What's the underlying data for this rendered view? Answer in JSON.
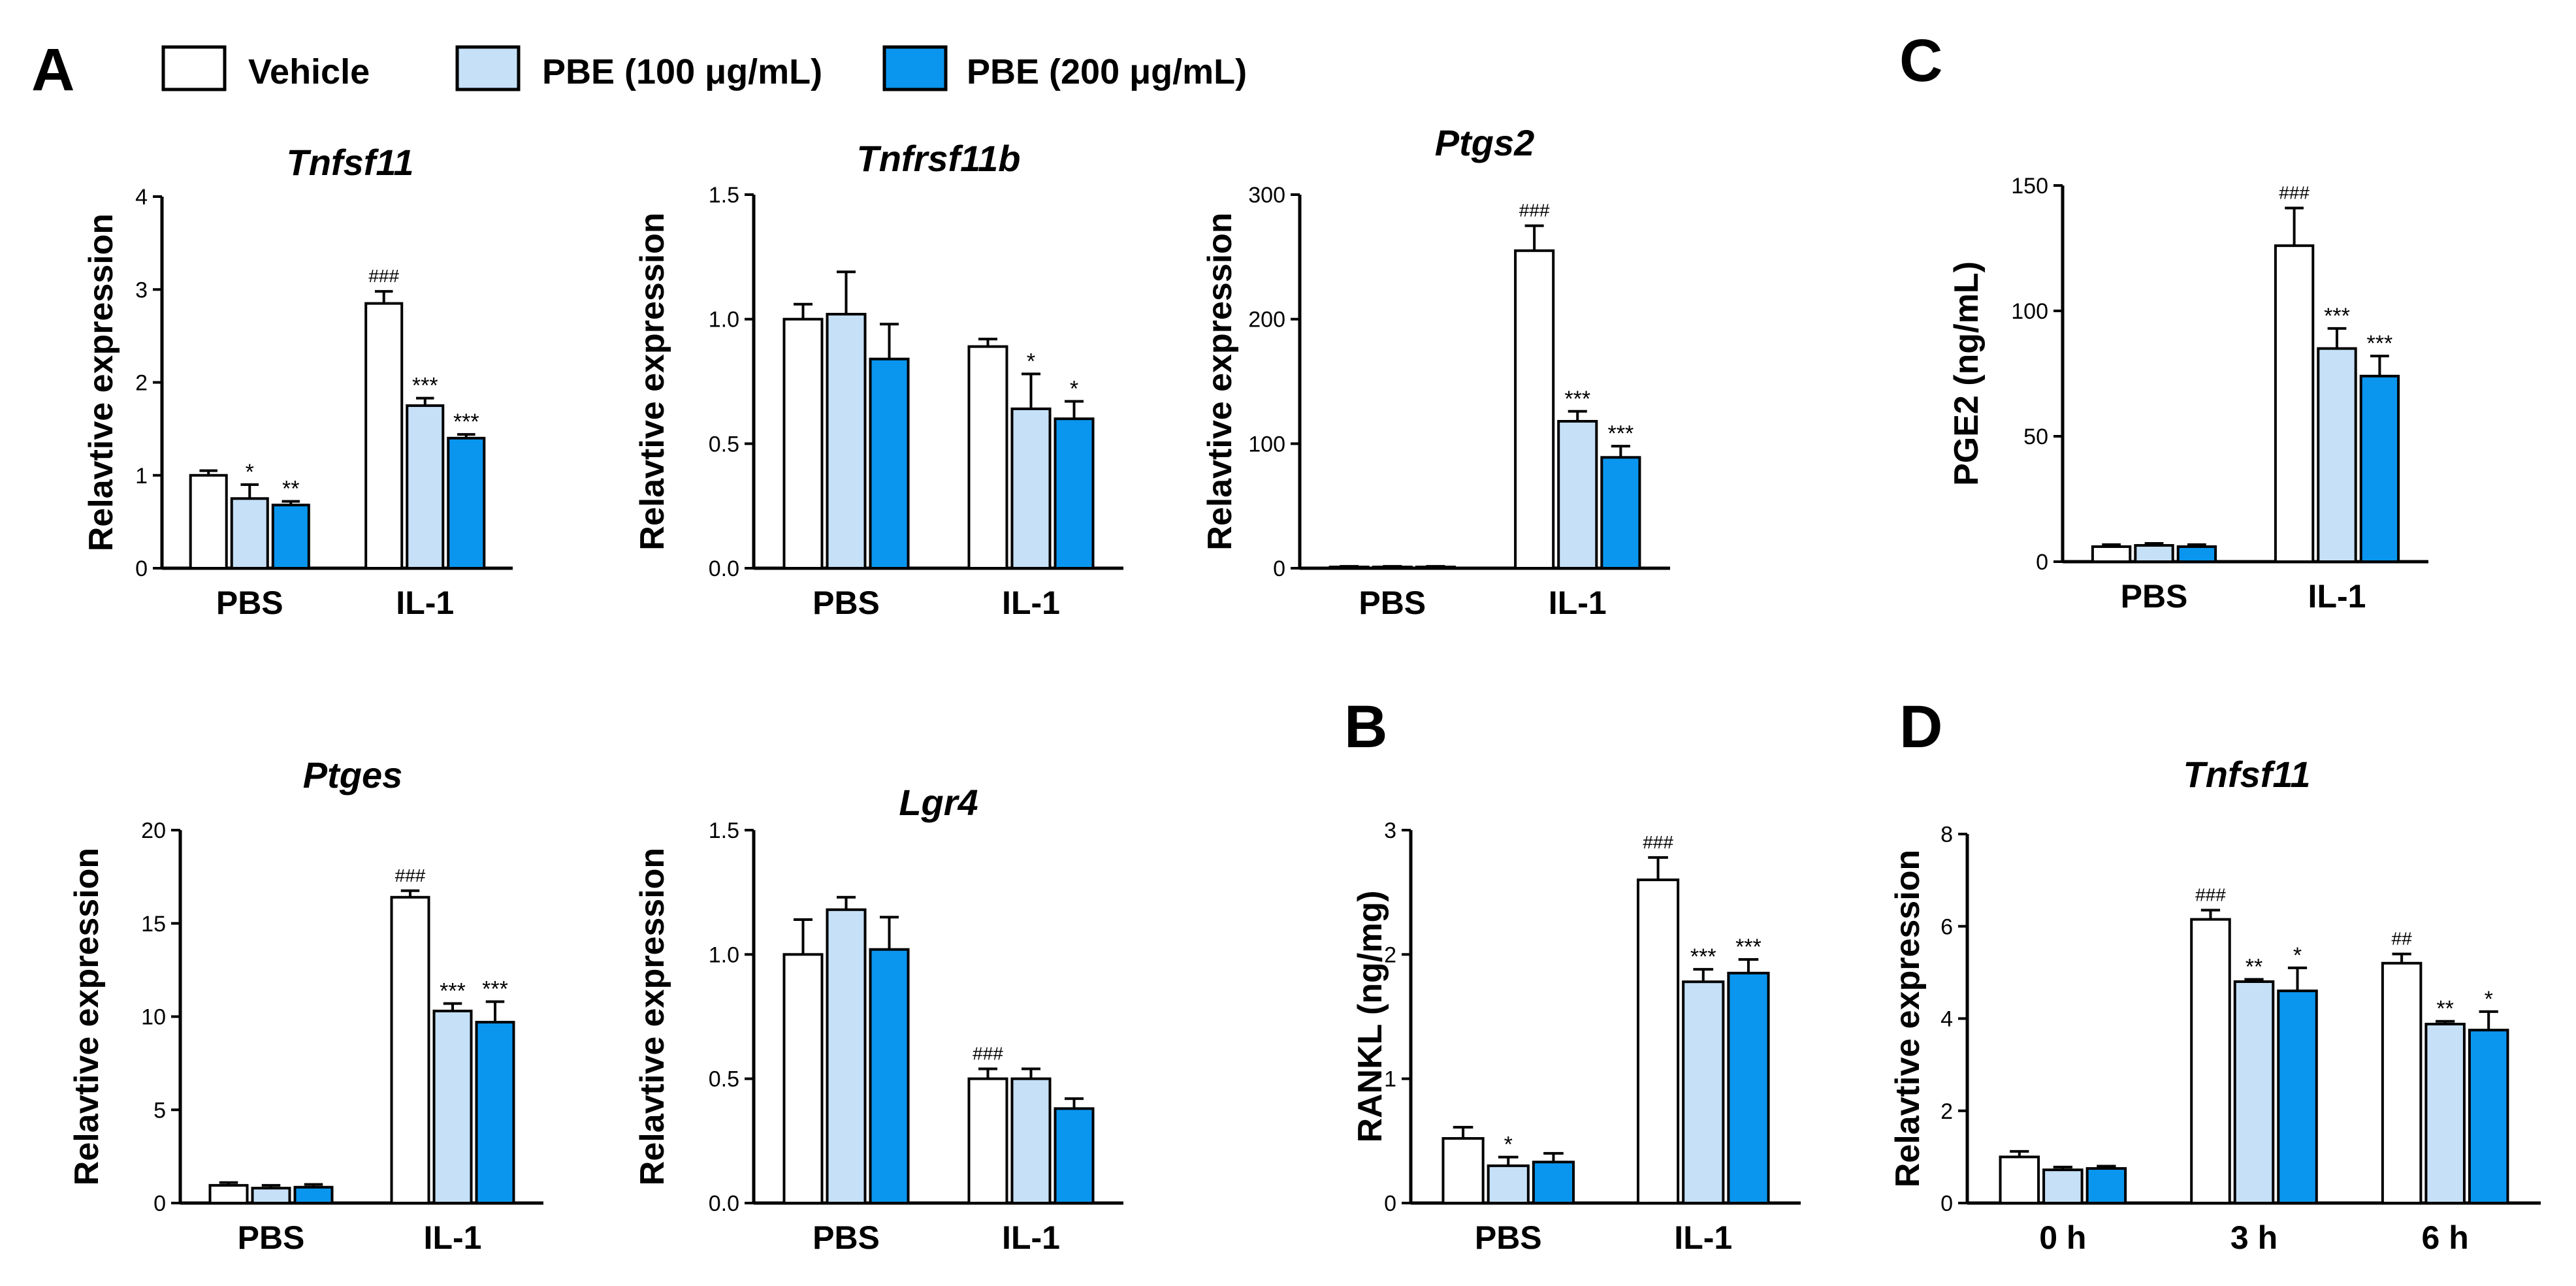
{
  "panel_labels": [
    "A",
    "B",
    "C",
    "D"
  ],
  "legend": [
    {
      "label": "Vehicle",
      "color": "#ffffff"
    },
    {
      "label": "PBE (100 μg/mL)",
      "color": "#c5e0f7"
    },
    {
      "label": "PBE (200 μg/mL)",
      "color": "#0a96ef"
    }
  ],
  "chart_data": [
    {
      "id": "Tnfsf11",
      "type": "bar",
      "title": "Tnfsf11",
      "ylabel": "Relavtive expression",
      "categories": [
        "PBS",
        "IL-1"
      ],
      "ylim": [
        0,
        4
      ],
      "yticks": [
        0,
        1,
        2,
        3,
        4
      ],
      "series": [
        {
          "name": "Vehicle",
          "values": [
            1.0,
            2.85
          ],
          "errors": [
            0.05,
            0.13
          ],
          "sig": [
            "",
            "###"
          ]
        },
        {
          "name": "PBE (100 μg/mL)",
          "values": [
            0.75,
            1.75
          ],
          "errors": [
            0.15,
            0.08
          ],
          "sig": [
            "*",
            "***"
          ]
        },
        {
          "name": "PBE (200 μg/mL)",
          "values": [
            0.68,
            1.4
          ],
          "errors": [
            0.04,
            0.04
          ],
          "sig": [
            "**",
            "***"
          ]
        }
      ]
    },
    {
      "id": "Tnfrsf11b",
      "type": "bar",
      "title": "Tnfrsf11b",
      "ylabel": "Relavtive expression",
      "categories": [
        "PBS",
        "IL-1"
      ],
      "ylim": [
        0,
        1.5
      ],
      "yticks": [
        "0.0",
        "0.5",
        "1.0",
        "1.5"
      ],
      "series": [
        {
          "name": "Vehicle",
          "values": [
            1.0,
            0.89
          ],
          "errors": [
            0.06,
            0.03
          ],
          "sig": [
            "",
            ""
          ]
        },
        {
          "name": "PBE (100 μg/mL)",
          "values": [
            1.02,
            0.64
          ],
          "errors": [
            0.17,
            0.14
          ],
          "sig": [
            "",
            "*"
          ]
        },
        {
          "name": "PBE (200 μg/mL)",
          "values": [
            0.84,
            0.6
          ],
          "errors": [
            0.14,
            0.07
          ],
          "sig": [
            "",
            "*"
          ]
        }
      ]
    },
    {
      "id": "Ptgs2",
      "type": "bar",
      "title": "Ptgs2",
      "ylabel": "Relavtive expression",
      "categories": [
        "PBS",
        "IL-1"
      ],
      "ylim": [
        0,
        300
      ],
      "yticks": [
        0,
        100,
        200,
        300
      ],
      "series": [
        {
          "name": "Vehicle",
          "values": [
            1,
            255
          ],
          "errors": [
            0.5,
            20
          ],
          "sig": [
            "",
            "###"
          ]
        },
        {
          "name": "PBE (100 μg/mL)",
          "values": [
            1,
            118
          ],
          "errors": [
            0.5,
            8
          ],
          "sig": [
            "",
            "***"
          ]
        },
        {
          "name": "PBE (200 μg/mL)",
          "values": [
            1,
            89
          ],
          "errors": [
            0.5,
            9
          ],
          "sig": [
            "",
            "***"
          ]
        }
      ]
    },
    {
      "id": "PGE2",
      "type": "bar",
      "title": "",
      "ylabel": "PGE2 (ng/mL)",
      "categories": [
        "PBS",
        "IL-1"
      ],
      "ylim": [
        0,
        150
      ],
      "yticks": [
        0,
        50,
        100,
        150
      ],
      "series": [
        {
          "name": "Vehicle",
          "values": [
            6,
            126
          ],
          "errors": [
            0.8,
            15
          ],
          "sig": [
            "",
            "###"
          ]
        },
        {
          "name": "PBE (100 μg/mL)",
          "values": [
            6.5,
            85
          ],
          "errors": [
            0.8,
            8
          ],
          "sig": [
            "",
            "***"
          ]
        },
        {
          "name": "PBE (200 μg/mL)",
          "values": [
            6,
            74
          ],
          "errors": [
            0.8,
            8
          ],
          "sig": [
            "",
            "***"
          ]
        }
      ]
    },
    {
      "id": "Ptges",
      "type": "bar",
      "title": "Ptges",
      "ylabel": "Relavtive expression",
      "categories": [
        "PBS",
        "IL-1"
      ],
      "ylim": [
        0,
        20
      ],
      "yticks": [
        0,
        5,
        10,
        15,
        20
      ],
      "series": [
        {
          "name": "Vehicle",
          "values": [
            0.95,
            16.4
          ],
          "errors": [
            0.15,
            0.35
          ],
          "sig": [
            "",
            "###"
          ]
        },
        {
          "name": "PBE (100 μg/mL)",
          "values": [
            0.8,
            10.3
          ],
          "errors": [
            0.15,
            0.4
          ],
          "sig": [
            "",
            "***"
          ]
        },
        {
          "name": "PBE (200 μg/mL)",
          "values": [
            0.85,
            9.7
          ],
          "errors": [
            0.15,
            1.1
          ],
          "sig": [
            "",
            "***"
          ]
        }
      ]
    },
    {
      "id": "Lgr4",
      "type": "bar",
      "title": "Lgr4",
      "ylabel": "Relavtive expression",
      "categories": [
        "PBS",
        "IL-1"
      ],
      "ylim": [
        0,
        1.5
      ],
      "yticks": [
        "0.0",
        "0.5",
        "1.0",
        "1.5"
      ],
      "series": [
        {
          "name": "Vehicle",
          "values": [
            1.0,
            0.5
          ],
          "errors": [
            0.14,
            0.04
          ],
          "sig": [
            "",
            "###"
          ]
        },
        {
          "name": "PBE (100 μg/mL)",
          "values": [
            1.18,
            0.5
          ],
          "errors": [
            0.05,
            0.04
          ],
          "sig": [
            "",
            ""
          ]
        },
        {
          "name": "PBE (200 μg/mL)",
          "values": [
            1.02,
            0.38
          ],
          "errors": [
            0.13,
            0.04
          ],
          "sig": [
            "",
            ""
          ]
        }
      ]
    },
    {
      "id": "RANKL",
      "type": "bar",
      "title": "",
      "ylabel": "RANKL (ng/mg)",
      "categories": [
        "PBS",
        "IL-1"
      ],
      "ylim": [
        0,
        3
      ],
      "yticks": [
        0,
        1,
        2,
        3
      ],
      "series": [
        {
          "name": "Vehicle",
          "values": [
            0.52,
            2.6
          ],
          "errors": [
            0.09,
            0.18
          ],
          "sig": [
            "",
            "###"
          ]
        },
        {
          "name": "PBE (100 μg/mL)",
          "values": [
            0.3,
            1.78
          ],
          "errors": [
            0.07,
            0.1
          ],
          "sig": [
            "*",
            "***"
          ]
        },
        {
          "name": "PBE (200 μg/mL)",
          "values": [
            0.33,
            1.85
          ],
          "errors": [
            0.07,
            0.11
          ],
          "sig": [
            "",
            "***"
          ]
        }
      ]
    },
    {
      "id": "Tnfsf11-time",
      "type": "bar",
      "title": "Tnfsf11",
      "ylabel": "Relavtive expression",
      "categories": [
        "0 h",
        "3 h",
        "6 h"
      ],
      "ylim": [
        0,
        8
      ],
      "yticks": [
        0,
        2,
        4,
        6,
        8
      ],
      "series": [
        {
          "name": "Vehicle",
          "values": [
            1.0,
            6.15,
            5.2
          ],
          "errors": [
            0.12,
            0.2,
            0.2
          ],
          "sig": [
            "",
            "###",
            "##"
          ]
        },
        {
          "name": "PBE (100 μg/mL)",
          "values": [
            0.72,
            4.8,
            3.88
          ],
          "errors": [
            0.06,
            0.05,
            0.06
          ],
          "sig": [
            "",
            "**",
            "**"
          ]
        },
        {
          "name": "PBE (200 μg/mL)",
          "values": [
            0.75,
            4.6,
            3.75
          ],
          "errors": [
            0.05,
            0.5,
            0.4
          ],
          "sig": [
            "",
            "*",
            "*"
          ]
        }
      ]
    }
  ]
}
